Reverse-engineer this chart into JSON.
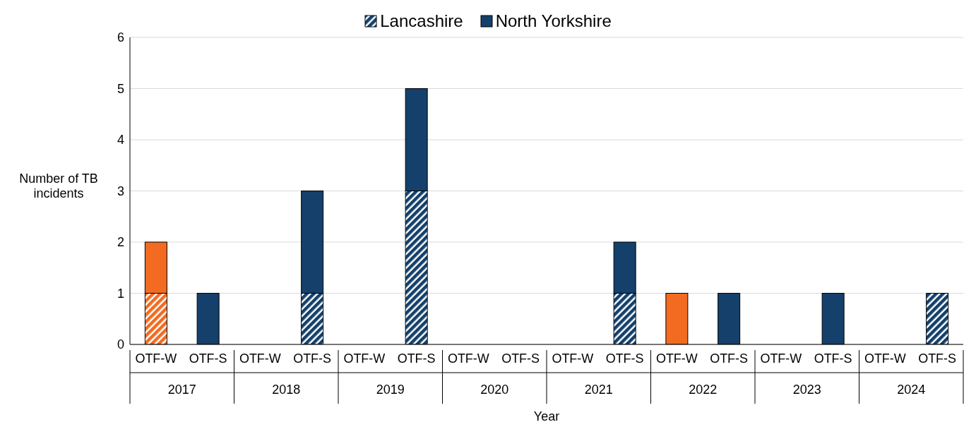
{
  "chart_data": {
    "type": "bar",
    "stacked": true,
    "categories": [
      "OTF-W",
      "OTF-S",
      "OTF-W",
      "OTF-S",
      "OTF-W",
      "OTF-S",
      "OTF-W",
      "OTF-S",
      "OTF-W",
      "OTF-S",
      "OTF-W",
      "OTF-S",
      "OTF-W",
      "OTF-S",
      "OTF-W",
      "OTF-S"
    ],
    "annotations": [
      "2017",
      "2018",
      "2019",
      "2020",
      "2021",
      "2022",
      "2023",
      "2024"
    ],
    "xlabel": "Year",
    "ylabel": "Number of TB incidents",
    "ylim": [
      0,
      6
    ],
    "yticks": [
      0,
      1,
      2,
      3,
      4,
      5,
      6
    ],
    "grid": "y",
    "legend": "top",
    "series": [
      {
        "name": "Lancashire",
        "color": "#14406b",
        "colors": [
          "#f26b21",
          "#14406b",
          "#14406b",
          "#14406b",
          "#14406b",
          "#14406b",
          "#14406b",
          "#14406b",
          "#14406b",
          "#14406b",
          "#14406b",
          "#14406b",
          "#14406b",
          "#14406b",
          "#14406b",
          "#14406b"
        ],
        "values": [
          1,
          0,
          0,
          1,
          0,
          3,
          0,
          0,
          0,
          1,
          0,
          0,
          0,
          0,
          0,
          1
        ]
      },
      {
        "name": "North Yorkshire",
        "color": "#14406b",
        "colors": [
          "#f26b21",
          "#14406b",
          "#14406b",
          "#14406b",
          "#14406b",
          "#14406b",
          "#14406b",
          "#14406b",
          "#14406b",
          "#14406b",
          "#f26b21",
          "#14406b",
          "#14406b",
          "#14406b",
          "#14406b",
          "#14406b"
        ],
        "values": [
          1,
          1,
          0,
          2,
          0,
          2,
          0,
          0,
          0,
          1,
          1,
          1,
          0,
          1,
          0,
          0
        ]
      }
    ]
  }
}
